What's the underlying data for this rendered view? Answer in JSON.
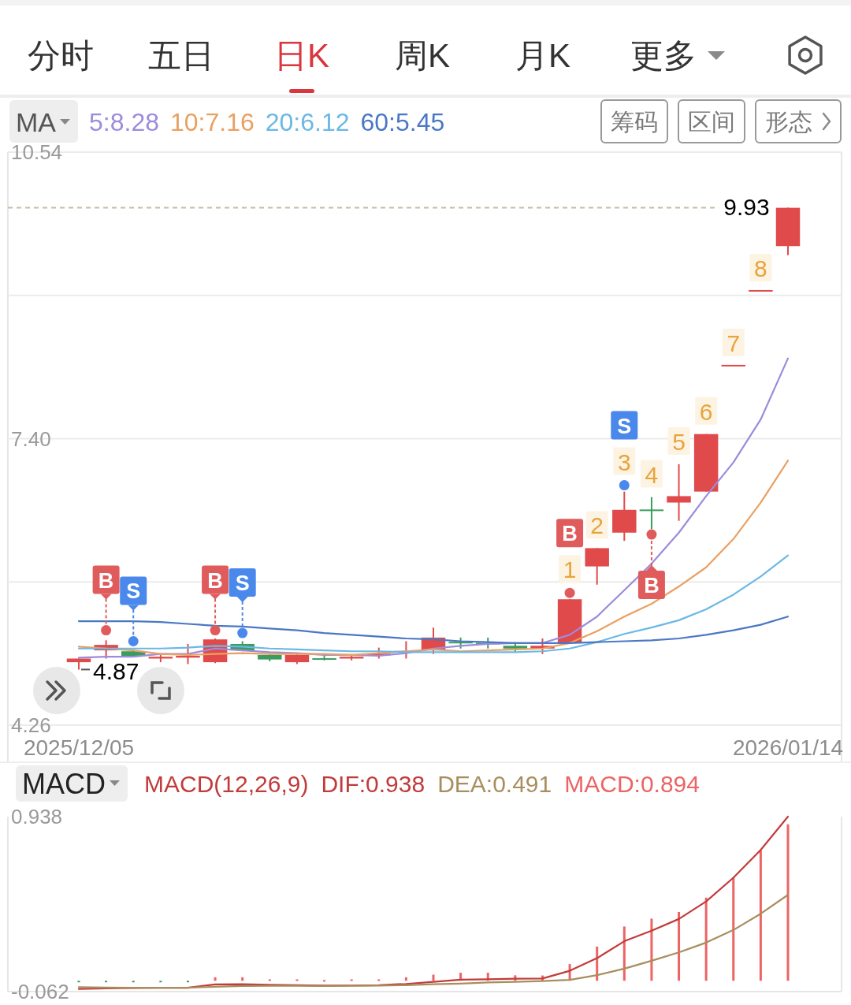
{
  "chart_data": [
    {
      "type": "other",
      "annotations": [
        "分时",
        "五日",
        "日K",
        "周K",
        "月K",
        "更多"
      ]
    },
    {
      "type": "candlestick",
      "title": "MA",
      "categories": [
        "2025/12/05",
        null,
        null,
        null,
        null,
        null,
        null,
        null,
        null,
        null,
        null,
        null,
        null,
        null,
        null,
        null,
        null,
        null,
        null,
        null,
        null,
        null,
        null,
        null,
        null,
        null,
        "2026/01/14"
      ],
      "ohlc": [
        [
          4.95,
          4.99,
          4.87,
          4.99
        ],
        [
          5.08,
          5.19,
          4.99,
          5.14
        ],
        [
          5.07,
          5.08,
          5.01,
          5.02
        ],
        [
          4.99,
          5.03,
          4.95,
          5.01
        ],
        [
          5.0,
          5.15,
          4.93,
          5.02
        ],
        [
          4.95,
          5.21,
          4.94,
          5.2
        ],
        [
          5.15,
          5.18,
          5.07,
          5.08
        ],
        [
          5.03,
          5.04,
          4.96,
          4.98
        ],
        [
          4.95,
          5.04,
          4.93,
          5.03
        ],
        [
          4.99,
          5.04,
          4.97,
          4.98
        ],
        [
          4.99,
          5.03,
          4.97,
          5.01
        ],
        [
          5.03,
          5.11,
          4.99,
          5.04
        ],
        [
          5.06,
          5.18,
          4.99,
          5.07
        ],
        [
          5.08,
          5.33,
          5.04,
          5.22
        ],
        [
          5.17,
          5.22,
          5.1,
          5.16
        ],
        [
          5.16,
          5.22,
          5.1,
          5.15
        ],
        [
          5.13,
          5.17,
          5.06,
          5.1
        ],
        [
          5.1,
          5.21,
          5.04,
          5.13
        ],
        [
          5.16,
          5.64,
          5.15,
          5.64
        ],
        [
          6.0,
          6.2,
          5.8,
          6.2
        ],
        [
          6.37,
          6.82,
          6.28,
          6.62
        ],
        [
          6.62,
          6.76,
          6.41,
          6.61
        ],
        [
          6.7,
          7.12,
          6.5,
          6.77
        ],
        [
          6.82,
          7.45,
          6.82,
          7.45
        ],
        [
          8.2,
          8.2,
          8.2,
          8.2
        ],
        [
          9.02,
          9.02,
          9.02,
          9.02
        ],
        [
          9.51,
          9.93,
          9.41,
          9.93
        ]
      ],
      "colors": [
        "#e04a4a",
        "#e04a4a",
        "#3a9d5d",
        "#e04a4a",
        "#e04a4a",
        "#e04a4a",
        "#3a9d5d",
        "#3a9d5d",
        "#e04a4a",
        "#3a9d5d",
        "#e04a4a",
        "#e04a4a",
        "#e04a4a",
        "#e04a4a",
        "#3a9d5d",
        "#3a9d5d",
        "#3a9d5d",
        "#e04a4a",
        "#e04a4a",
        "#e04a4a",
        "#e04a4a",
        "#3a9d5d",
        "#e04a4a",
        "#e04a4a",
        "#e04a4a",
        "#e04a4a",
        "#e04a4a"
      ],
      "value_labels": [
        null,
        null,
        null,
        null,
        null,
        null,
        null,
        null,
        null,
        null,
        null,
        null,
        null,
        null,
        null,
        null,
        null,
        null,
        "1",
        "2",
        "3",
        "4",
        "5",
        "6",
        "7",
        "8",
        null
      ],
      "series": [
        {
          "name": "5:8.28",
          "type": "line",
          "color": "#9d8bdc",
          "values": [
            5.0,
            5.01,
            5.01,
            5.04,
            5.04,
            5.1,
            5.08,
            5.06,
            5.05,
            5.03,
            5.03,
            5.02,
            5.05,
            5.1,
            5.13,
            5.15,
            5.16,
            5.16,
            5.25,
            5.45,
            5.74,
            6.03,
            6.37,
            6.77,
            7.14,
            7.61,
            8.28
          ]
        },
        {
          "name": "10:7.16",
          "type": "line",
          "color": "#e9a062",
          "values": [
            5.12,
            5.1,
            5.08,
            5.04,
            5.03,
            5.04,
            5.05,
            5.04,
            5.04,
            5.04,
            5.03,
            5.05,
            5.07,
            5.09,
            5.07,
            5.08,
            5.09,
            5.1,
            5.16,
            5.29,
            5.45,
            5.59,
            5.78,
            5.99,
            6.3,
            6.7,
            7.16
          ]
        },
        {
          "name": "20:6.12",
          "type": "line",
          "color": "#6bb8e6",
          "values": [
            5.1,
            5.1,
            5.1,
            5.1,
            5.11,
            5.13,
            5.12,
            5.1,
            5.09,
            5.08,
            5.07,
            5.07,
            5.06,
            5.06,
            5.06,
            5.06,
            5.06,
            5.07,
            5.1,
            5.17,
            5.26,
            5.33,
            5.41,
            5.53,
            5.69,
            5.89,
            6.12
          ]
        },
        {
          "name": "60:5.45",
          "type": "line",
          "color": "#4a78c4",
          "values": [
            5.4,
            5.4,
            5.4,
            5.39,
            5.37,
            5.35,
            5.34,
            5.32,
            5.3,
            5.27,
            5.25,
            5.23,
            5.21,
            5.2,
            5.18,
            5.17,
            5.16,
            5.16,
            5.16,
            5.17,
            5.18,
            5.19,
            5.21,
            5.25,
            5.3,
            5.36,
            5.45
          ]
        },
        {
          "type": "scatter",
          "color": "#e05c5c",
          "values": [
            null,
            5.3,
            null,
            null,
            null,
            5.3,
            null,
            null,
            null,
            null,
            null,
            null,
            null,
            null,
            null,
            null,
            null,
            null,
            5.71,
            null,
            null,
            6.35,
            null,
            null,
            null,
            null,
            null
          ],
          "value_labels": [
            null,
            "B",
            null,
            null,
            null,
            "B",
            null,
            null,
            null,
            null,
            null,
            null,
            null,
            null,
            null,
            null,
            null,
            null,
            "B",
            null,
            null,
            "B",
            null,
            null,
            null,
            null,
            null
          ]
        },
        {
          "type": "scatter",
          "color": "#4a88ec",
          "values": [
            null,
            null,
            5.18,
            null,
            null,
            null,
            5.27,
            null,
            null,
            null,
            null,
            null,
            null,
            null,
            null,
            null,
            null,
            null,
            null,
            null,
            6.89,
            null,
            null,
            null,
            null,
            null,
            null
          ],
          "value_labels": [
            null,
            null,
            "S",
            null,
            null,
            null,
            "S",
            null,
            null,
            null,
            null,
            null,
            null,
            null,
            null,
            null,
            null,
            null,
            null,
            null,
            "S",
            null,
            null,
            null,
            null,
            null,
            null
          ]
        }
      ],
      "ylim": [
        4.26,
        10.54
      ],
      "yticks": [
        4.26,
        {
          "value": 5.83,
          "label": null
        },
        {
          "value": 7.4,
          "label": "7.40"
        },
        {
          "value": 8.97,
          "label": null
        },
        10.54
      ],
      "grid": "y",
      "legend": "top left",
      "ref_lines": [
        {
          "axis": "y",
          "value": 9.93,
          "label": "9.93",
          "color": "#c8bca0",
          "line_style": "dashed"
        }
      ],
      "annotations": [
        "筹码",
        "区间",
        "形态",
        {
          "text": "4.87",
          "x": "2025/12/05",
          "y": 4.87
        }
      ]
    },
    {
      "type": "line",
      "title": "MACD",
      "subtitle": "MACD(12,26,9)",
      "categories": [
        null,
        null,
        null,
        null,
        null,
        null,
        null,
        null,
        null,
        null,
        null,
        null,
        null,
        null,
        null,
        null,
        null,
        null,
        null,
        null,
        null,
        null,
        null,
        null,
        null,
        null,
        null
      ],
      "series": [
        {
          "name": "DIF:0.938",
          "color": "#c23b3b",
          "values": [
            -0.047,
            -0.044,
            -0.041,
            -0.04,
            -0.04,
            -0.021,
            -0.02,
            -0.023,
            -0.025,
            -0.028,
            -0.027,
            -0.025,
            -0.018,
            -0.006,
            0.006,
            0.008,
            0.012,
            0.013,
            0.057,
            0.129,
            0.226,
            0.286,
            0.353,
            0.453,
            0.589,
            0.748,
            0.938
          ]
        },
        {
          "name": "DEA:0.491",
          "color": "#a88e5e",
          "values": [
            -0.036,
            -0.039,
            -0.04,
            -0.04,
            -0.04,
            -0.034,
            -0.03,
            -0.029,
            -0.029,
            -0.03,
            -0.029,
            -0.028,
            -0.025,
            -0.02,
            -0.016,
            -0.01,
            -0.006,
            -0.002,
            0.005,
            0.032,
            0.069,
            0.114,
            0.162,
            0.218,
            0.29,
            0.383,
            0.491
          ]
        },
        {
          "name": "MACD:0.894",
          "type": "bar",
          "color": "#ec6464",
          "colors": [
            "#3a9d5d",
            "#3a9d5d",
            "#3a9d5d",
            "#3a9d5d",
            "#3a9d5d",
            "#ec6464",
            "#ec6464",
            "#ec6464",
            "#ec6464",
            "#ec6464",
            "#ec6464",
            "#ec6464",
            "#ec6464",
            "#ec6464",
            "#ec6464",
            "#ec6464",
            "#ec6464",
            "#ec6464",
            "#ec6464",
            "#ec6464",
            "#ec6464",
            "#ec6464",
            "#ec6464",
            "#ec6464",
            "#ec6464",
            "#ec6464",
            "#ec6464"
          ],
          "values": [
            -0.005,
            -0.005,
            -0.005,
            -0.005,
            -0.005,
            0.02,
            0.02,
            0.008,
            0.008,
            0.004,
            0.008,
            0.008,
            0.02,
            0.035,
            0.046,
            0.046,
            0.031,
            0.03,
            0.095,
            0.195,
            0.31,
            0.355,
            0.393,
            0.475,
            0.591,
            0.744,
            0.894
          ]
        }
      ],
      "ylim": [
        -0.062,
        0.938
      ],
      "yticks": [
        -0.062,
        0.938
      ],
      "tick_labels": "y",
      "legend": "top"
    }
  ]
}
